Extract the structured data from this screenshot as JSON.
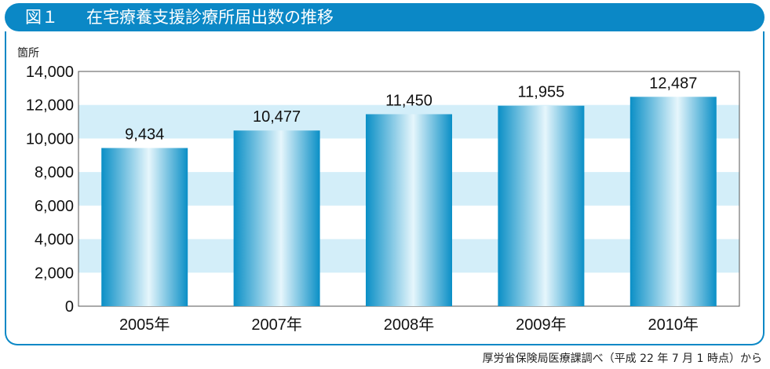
{
  "header": {
    "figure_label": "図１",
    "title": "在宅療養支援診療所届出数の推移"
  },
  "source_note": "厚労省保険局医療課調べ（平成 22 年 7 月 1 時点）から",
  "colors": {
    "header": "#0b88c6",
    "band": "#d3eef9",
    "bar_dark": "#0a8fc6",
    "bar_light": "#e6f6fc"
  },
  "chart_data": {
    "type": "bar",
    "title": "",
    "xlabel": "",
    "ylabel": "箇所",
    "categories": [
      "2005年",
      "2007年",
      "2008年",
      "2009年",
      "2010年"
    ],
    "values": [
      9434,
      10477,
      11450,
      11955,
      12487
    ],
    "value_labels": [
      "9,434",
      "10,477",
      "11,450",
      "11,955",
      "12,487"
    ],
    "ylim": [
      0,
      14000
    ],
    "yticks": [
      0,
      2000,
      4000,
      6000,
      8000,
      10000,
      12000,
      14000
    ],
    "ytick_labels": [
      "0",
      "2,000",
      "4,000",
      "6,000",
      "8,000",
      "10,000",
      "12,000",
      "14,000"
    ],
    "grid": "alternating horizontal bands",
    "legend": "none"
  }
}
